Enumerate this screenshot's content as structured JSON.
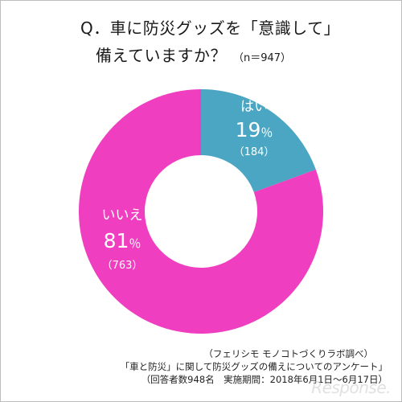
{
  "title": {
    "line1": "Q．車に防災グッズを「意識して」",
    "line2": "備えていますか？",
    "sample": "（n＝947）"
  },
  "chart_data": {
    "type": "pie",
    "donut": true,
    "slices": [
      {
        "name": "はい",
        "pct_label": "19",
        "unit": "％",
        "count_label": "（184）",
        "value": 184,
        "color": "#4aa6c2"
      },
      {
        "name": "いいえ",
        "pct_label": "81",
        "unit": "％",
        "count_label": "（763）",
        "value": 763,
        "color": "#f03ec0"
      }
    ]
  },
  "footer": {
    "source": "（フェリシモ モノコトづくりラボ調べ）",
    "survey": "「車と防災」に関して防災グッズの備えについてのアンケート」",
    "details": "（回答者数948名　実施期間：2018年6月1日～6月17日）"
  },
  "watermark": "Response."
}
